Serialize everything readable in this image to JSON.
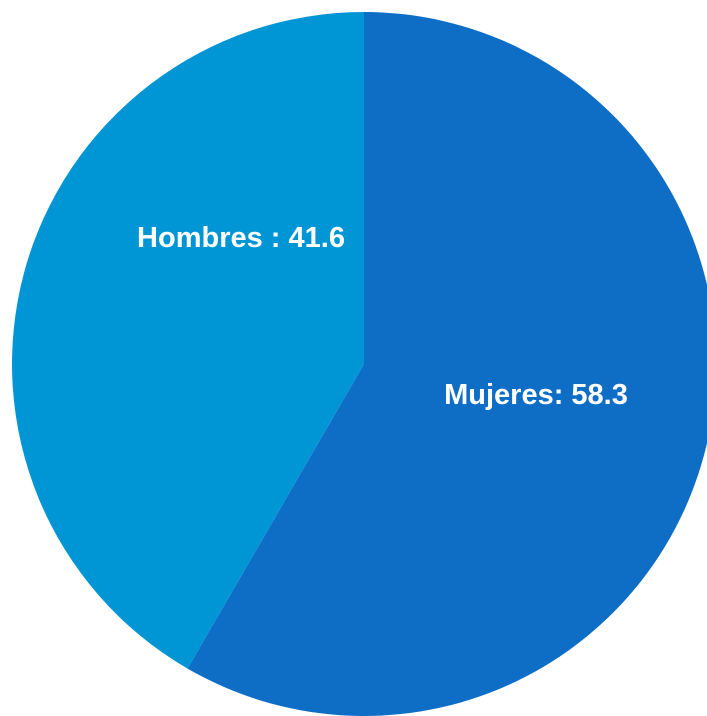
{
  "chart_data": {
    "type": "pie",
    "title": "",
    "slices": [
      {
        "name": "Mujeres",
        "value": 58.3,
        "label": "Mujeres: 58.3",
        "color": "#0e6ec6"
      },
      {
        "name": "Hombres",
        "value": 41.6,
        "label": "Hombres : 41.6",
        "color": "#0096d6"
      }
    ],
    "legend": "none",
    "start_angle_deg": 0,
    "direction": "clockwise"
  }
}
